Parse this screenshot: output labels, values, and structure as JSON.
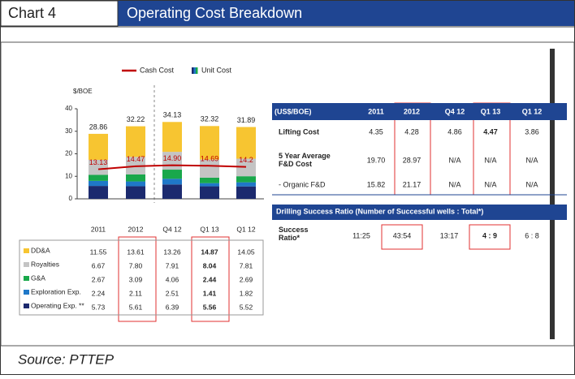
{
  "header": {
    "number": "Chart 4",
    "title": "Operating Cost Breakdown"
  },
  "chart_data": {
    "type": "bar",
    "stacked": true,
    "y_label": "$/BOE",
    "categories": [
      "2011",
      "2012",
      "Q4 12",
      "Q1 13",
      "Q1 12"
    ],
    "ylim": [
      0,
      40
    ],
    "yticks": [
      0,
      10,
      20,
      30,
      40
    ],
    "stack_legend": "Unit Cost",
    "series": [
      {
        "name": "Operating Exp. **",
        "color": "#1c2a6e",
        "values": [
          5.73,
          5.61,
          6.39,
          5.56,
          5.52
        ],
        "value_labels": [
          "5.73",
          "5.61",
          "6.39",
          "5.56",
          "5.52"
        ]
      },
      {
        "name": "Exploration Exp.",
        "color": "#1f78c8",
        "values": [
          2.24,
          2.11,
          2.51,
          1.41,
          1.82
        ],
        "value_labels": [
          "2.24",
          "2.11",
          "2.51",
          "1.41",
          "1.82"
        ]
      },
      {
        "name": "G&A",
        "color": "#19a84b",
        "values": [
          2.67,
          3.09,
          4.06,
          2.44,
          2.69
        ],
        "value_labels": [
          "2.67",
          "3.09",
          "4.06",
          "2.44",
          "2.69"
        ]
      },
      {
        "name": "Royalties",
        "color": "#c4c4c4",
        "values": [
          6.67,
          7.8,
          7.91,
          8.04,
          7.81
        ],
        "value_labels": [
          "6.67",
          "7.80",
          "7.91",
          "8.04",
          "7.81"
        ]
      },
      {
        "name": "DD&A",
        "color": "#f7c531",
        "values": [
          11.55,
          13.61,
          13.26,
          14.87,
          14.05
        ],
        "value_labels": [
          "11.55",
          "13.61",
          "13.26",
          "14.87",
          "14.05"
        ]
      },
      {
        "name": "Cash Cost",
        "type": "line",
        "color": "#c00000",
        "values": [
          13.13,
          14.47,
          14.9,
          14.69,
          14.2
        ],
        "value_labels": [
          "13.13",
          "14.47",
          "14.90",
          "14.69",
          "14.2"
        ]
      }
    ],
    "total_labels": [
      "28.86",
      "32.22",
      "34.13",
      "32.32",
      "31.89"
    ]
  },
  "table": {
    "header": [
      "(US$/BOE)",
      "2011",
      "2012",
      "Q4 12",
      "Q1 13",
      "Q1 12"
    ],
    "rows": [
      [
        "Lifting Cost",
        "4.35",
        "4.28",
        "4.86",
        "4.47",
        "3.86"
      ],
      [
        "5 Year Average F&D Cost",
        "19.70",
        "28.97",
        "N/A",
        "N/A",
        "N/A"
      ],
      [
        "- Organic F&D",
        "15.82",
        "21.17",
        "N/A",
        "N/A",
        "N/A"
      ]
    ],
    "section": "Drilling Success Ratio (Number of Successful wells : Total*)",
    "section_rows": [
      [
        "Success Ratio*",
        "11:25",
        "43:54",
        "13:17",
        "4 : 9",
        "6 : 8"
      ]
    ]
  },
  "source": "Source: PTTEP"
}
